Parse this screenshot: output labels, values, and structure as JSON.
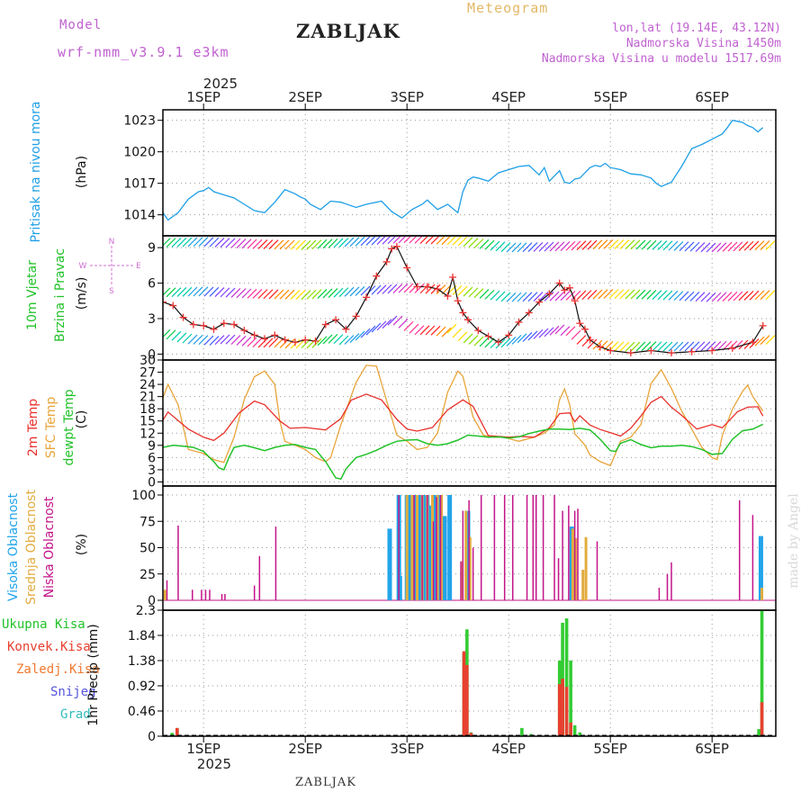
{
  "header": {
    "model_label": "Model",
    "model_name": "wrf-nmm_v3.9.1 e3km",
    "station": "ZABLJAK",
    "title": "Meteogram",
    "lonlat": "lon,lat (19.14E, 43.12N)",
    "altitude": "Nadmorska Visina 1450m",
    "model_altitude": "Nadmorska Visina u modelu 1517.69m"
  },
  "footer": {
    "station": "ZABLJAK",
    "watermark": "made by Angel"
  },
  "colors": {
    "pressure": "#1e9fe6",
    "temp2m": "#e8302a",
    "sfc": "#e8a43a",
    "dewpt": "#22c22a",
    "high": "#21a4ea",
    "mid": "#e2ac3f",
    "low": "#c3148a",
    "rain": "#33cc33",
    "conv": "#e84030",
    "freez": "#f07830",
    "snow": "#5555dd",
    "grad": "#33bbbb",
    "wind": "#d070d0"
  },
  "chart_data": [
    {
      "type": "line",
      "title": "Pritisak na nivou mora",
      "ylabel": "(hPa)",
      "ylim": [
        1012,
        1024
      ],
      "yticks": [
        "1014",
        "1017",
        "1020",
        "1023"
      ],
      "x_day_start": 0.6,
      "top_axis_year": "2025",
      "top_axis_labels": [
        "1SEP",
        "2SEP",
        "3SEP",
        "4SEP",
        "5SEP",
        "6SEP"
      ],
      "series": [
        {
          "name": "Pritisak",
          "x": [
            0.6,
            0.65,
            0.75,
            0.85,
            0.95,
            1.0,
            1.05,
            1.1,
            1.2,
            1.3,
            1.4,
            1.5,
            1.6,
            1.7,
            1.8,
            1.9,
            1.95,
            2.0,
            2.05,
            2.15,
            2.25,
            2.35,
            2.5,
            2.6,
            2.75,
            2.85,
            2.95,
            3.05,
            3.15,
            3.2,
            3.3,
            3.4,
            3.5,
            3.55,
            3.6,
            3.65,
            3.7,
            3.8,
            3.9,
            4.0,
            4.1,
            4.2,
            4.3,
            4.35,
            4.4,
            4.5,
            4.55,
            4.6,
            4.65,
            4.7,
            4.8,
            4.85,
            4.9,
            4.95,
            5.0,
            5.1,
            5.2,
            5.3,
            5.4,
            5.45,
            5.5,
            5.6,
            5.7,
            5.8,
            5.9,
            6.0,
            6.1,
            6.15,
            6.2,
            6.25,
            6.3,
            6.35,
            6.4,
            6.45,
            6.5
          ],
          "values": [
            1014.2,
            1013.5,
            1014.2,
            1015.5,
            1016.2,
            1016.3,
            1016.6,
            1016.2,
            1015.9,
            1015.6,
            1015,
            1014.4,
            1014.2,
            1015.2,
            1016.4,
            1016,
            1015.7,
            1015.5,
            1015,
            1014.5,
            1015.3,
            1015.2,
            1014.7,
            1015,
            1015.3,
            1014.3,
            1013.7,
            1014.5,
            1015,
            1015.4,
            1014.5,
            1015,
            1014.2,
            1016.2,
            1017.3,
            1017.6,
            1017.5,
            1017.2,
            1018,
            1018.3,
            1018.6,
            1018.7,
            1017.8,
            1018.5,
            1017.2,
            1018.2,
            1017.1,
            1017,
            1017.4,
            1017.5,
            1018.5,
            1018.7,
            1018.6,
            1018.9,
            1018.5,
            1018.3,
            1017.9,
            1017.8,
            1017.5,
            1017,
            1016.7,
            1017.1,
            1018.6,
            1020.3,
            1020.7,
            1021.2,
            1021.7,
            1022.3,
            1023,
            1022.9,
            1022.8,
            1022.5,
            1022.3,
            1021.9,
            1022.3
          ]
        }
      ]
    },
    {
      "type": "line",
      "title": "10m Vjetar",
      "subtitle": "Brzina i Pravac",
      "ylabel": "(m/s)",
      "ylim": [
        -0.5,
        10
      ],
      "yticks": [
        "0",
        "3",
        "6",
        "9"
      ],
      "legend_compass": [
        "N",
        "W",
        "E",
        "S"
      ],
      "series": [
        {
          "name": "10m wind speed",
          "x": [
            0.6,
            0.7,
            0.8,
            0.9,
            1.0,
            1.1,
            1.2,
            1.3,
            1.4,
            1.5,
            1.6,
            1.7,
            1.8,
            1.9,
            2.0,
            2.1,
            2.2,
            2.3,
            2.4,
            2.5,
            2.6,
            2.7,
            2.8,
            2.85,
            2.9,
            3.0,
            3.1,
            3.2,
            3.3,
            3.4,
            3.45,
            3.5,
            3.55,
            3.6,
            3.7,
            3.8,
            3.9,
            4.0,
            4.1,
            4.2,
            4.3,
            4.4,
            4.5,
            4.55,
            4.6,
            4.65,
            4.7,
            4.75,
            4.8,
            4.9,
            5.0,
            5.2,
            5.4,
            5.6,
            5.8,
            6.0,
            6.2,
            6.4,
            6.5
          ],
          "values": [
            4.4,
            4.1,
            3.1,
            2.5,
            2.4,
            2.1,
            2.6,
            2.5,
            2.0,
            1.6,
            1.3,
            1.6,
            1.2,
            1.0,
            1.2,
            1.1,
            2.5,
            2.9,
            2.1,
            3.2,
            4.8,
            6.6,
            7.8,
            8.9,
            9.1,
            7.3,
            5.7,
            5.7,
            5.5,
            4.9,
            6.5,
            4.5,
            3.5,
            2.9,
            2.0,
            1.5,
            1.0,
            1.6,
            2.7,
            3.5,
            4.4,
            5.1,
            6.0,
            5.4,
            5.6,
            4.5,
            2.6,
            2.1,
            1.2,
            0.6,
            0.3,
            0.1,
            0.3,
            0.1,
            0.2,
            0.3,
            0.5,
            1.0,
            2.4
          ]
        },
        {
          "name": "wind barb bands",
          "x": [
            0.6,
            1.0,
            1.5,
            2.0,
            2.5,
            3.0,
            3.5,
            4.0,
            4.5,
            5.0,
            5.5,
            6.0,
            6.5
          ],
          "values": [
            9.4,
            9.5,
            9.3,
            9.2,
            9.5,
            9.8,
            9.6,
            9.0,
            9.1,
            9.3,
            9.2,
            9.0,
            9.2
          ]
        }
      ]
    },
    {
      "type": "line",
      "ylabel": "(C)",
      "legend": [
        "2m Temp",
        "SFC Temp",
        "dewpt Temp"
      ],
      "ylim": [
        -1,
        30
      ],
      "yticks": [
        "0",
        "3",
        "6",
        "9",
        "12",
        "15",
        "18",
        "21",
        "24",
        "27",
        "30"
      ],
      "series": [
        {
          "name": "2m Temp",
          "x": [
            0.6,
            0.65,
            0.75,
            0.85,
            1.0,
            1.1,
            1.2,
            1.35,
            1.5,
            1.6,
            1.75,
            1.85,
            2.0,
            2.2,
            2.35,
            2.45,
            2.6,
            2.75,
            2.9,
            3.0,
            3.1,
            3.25,
            3.4,
            3.55,
            3.65,
            3.8,
            3.9,
            4.0,
            4.1,
            4.25,
            4.4,
            4.5,
            4.6,
            4.65,
            4.7,
            4.8,
            4.9,
            5.0,
            5.1,
            5.2,
            5.3,
            5.4,
            5.5,
            5.6,
            5.7,
            5.85,
            6.0,
            6.1,
            6.25,
            6.35,
            6.45,
            6.5
          ],
          "values": [
            15.2,
            17.2,
            15.1,
            13.0,
            11.0,
            10.2,
            12.0,
            17.0,
            19.9,
            19.0,
            15.0,
            13.2,
            13.4,
            12.8,
            15.6,
            20.1,
            21.6,
            20.2,
            15.4,
            13.0,
            12.5,
            13.4,
            17.7,
            20.2,
            18.6,
            11.4,
            11.2,
            11.0,
            11.2,
            11.0,
            13.3,
            16.8,
            17.0,
            14.8,
            16.3,
            14.0,
            12.9,
            12.1,
            11.3,
            13.2,
            16.2,
            19.6,
            21.0,
            18.4,
            16.4,
            13.0,
            14.1,
            13.3,
            17.3,
            18.4,
            18.5,
            16.2
          ]
        },
        {
          "name": "SFC Temp",
          "x": [
            0.6,
            0.65,
            0.75,
            0.85,
            1.0,
            1.1,
            1.2,
            1.3,
            1.4,
            1.5,
            1.6,
            1.7,
            1.75,
            1.8,
            1.9,
            2.0,
            2.1,
            2.2,
            2.25,
            2.35,
            2.5,
            2.6,
            2.7,
            2.8,
            2.9,
            3.0,
            3.1,
            3.2,
            3.3,
            3.4,
            3.5,
            3.55,
            3.65,
            3.75,
            3.85,
            3.95,
            4.1,
            4.25,
            4.35,
            4.45,
            4.5,
            4.55,
            4.6,
            4.65,
            4.7,
            4.75,
            4.8,
            4.9,
            5.0,
            5.05,
            5.1,
            5.2,
            5.3,
            5.4,
            5.5,
            5.6,
            5.7,
            5.8,
            5.9,
            6.0,
            6.05,
            6.1,
            6.2,
            6.3,
            6.35,
            6.4,
            6.5
          ],
          "values": [
            20.7,
            24.0,
            19.0,
            8.0,
            7.0,
            5.5,
            4.8,
            11.0,
            20.3,
            25.9,
            27.3,
            24.0,
            15.0,
            10.0,
            9.0,
            8.0,
            6.0,
            5.0,
            6.0,
            14.1,
            24.5,
            28.7,
            28.5,
            20.0,
            11.5,
            10.0,
            8.0,
            8.5,
            12.0,
            22.1,
            27.3,
            26.0,
            16.0,
            11.5,
            11.0,
            11.0,
            10.0,
            11.0,
            12.0,
            14.0,
            20.2,
            22.9,
            19.0,
            11.8,
            10.5,
            9.0,
            6.6,
            5.0,
            4.0,
            7.0,
            10.0,
            11.0,
            14.1,
            24.2,
            27.6,
            23.0,
            17.5,
            13.0,
            8.5,
            6.0,
            5.5,
            11.4,
            17.9,
            22.3,
            23.8,
            21.0,
            17.4
          ]
        },
        {
          "name": "dewpt Temp",
          "x": [
            0.6,
            0.7,
            0.8,
            0.9,
            1.0,
            1.1,
            1.15,
            1.2,
            1.25,
            1.3,
            1.4,
            1.5,
            1.6,
            1.7,
            1.8,
            1.9,
            2.0,
            2.1,
            2.2,
            2.3,
            2.35,
            2.4,
            2.5,
            2.6,
            2.7,
            2.8,
            2.9,
            3.0,
            3.1,
            3.2,
            3.3,
            3.4,
            3.5,
            3.6,
            3.7,
            3.8,
            3.9,
            4.0,
            4.1,
            4.2,
            4.3,
            4.4,
            4.5,
            4.6,
            4.7,
            4.8,
            4.9,
            5.0,
            5.05,
            5.1,
            5.2,
            5.3,
            5.4,
            5.5,
            5.6,
            5.7,
            5.8,
            5.9,
            6.0,
            6.1,
            6.2,
            6.3,
            6.4,
            6.5
          ],
          "values": [
            8.5,
            9.0,
            8.8,
            8.5,
            7.5,
            5.0,
            3.5,
            3.0,
            6.0,
            8.5,
            9.0,
            8.4,
            7.7,
            8.5,
            9.0,
            9.2,
            8.5,
            8.0,
            5.0,
            1.0,
            0.7,
            3.2,
            6.0,
            6.8,
            7.8,
            9.0,
            10.0,
            10.3,
            10.4,
            9.4,
            9.0,
            9.4,
            10.3,
            11.5,
            11.3,
            11.0,
            11.1,
            10.8,
            11.1,
            11.9,
            12.5,
            13.0,
            13.0,
            12.9,
            13.2,
            12.8,
            10.5,
            7.7,
            7.5,
            9.5,
            10.4,
            9.2,
            8.4,
            8.8,
            8.8,
            9.0,
            8.7,
            8.0,
            6.8,
            7.0,
            10.5,
            12.6,
            13.0,
            14.2
          ]
        }
      ]
    },
    {
      "type": "bar",
      "ylabel": "(%)",
      "legend": [
        "Visoka Oblacnost",
        "Srednja Oblacnost",
        "Niska Oblacnost"
      ],
      "ylim": [
        0,
        100
      ],
      "yticks": [
        "0",
        "25",
        "50",
        "75",
        "100"
      ],
      "series": [
        {
          "name": "Visoka Oblacnost",
          "x": [
            2.83,
            2.92,
            2.93,
            3.0,
            3.04,
            3.08,
            3.12,
            3.16,
            3.2,
            3.24,
            3.28,
            3.32,
            3.37,
            3.42,
            3.6,
            4.62,
            6.48
          ],
          "values": [
            68,
            100,
            23,
            100,
            100,
            100,
            100,
            100,
            100,
            90,
            100,
            100,
            80,
            100,
            85,
            70,
            61
          ]
        },
        {
          "name": "Srednja Oblacnost",
          "x": [
            0.62,
            3.0,
            3.05,
            3.1,
            3.15,
            3.2,
            3.25,
            3.3,
            3.34,
            3.54,
            3.58,
            3.62,
            4.63,
            4.66,
            4.73,
            4.76,
            6.49
          ],
          "values": [
            10,
            100,
            100,
            100,
            100,
            100,
            100,
            100,
            100,
            37,
            85,
            60,
            68,
            59,
            29,
            60,
            12
          ]
        },
        {
          "name": "Niska Oblacnost",
          "x": [
            0.64,
            0.75,
            0.89,
            0.98,
            1.02,
            1.06,
            1.18,
            1.21,
            1.5,
            1.55,
            1.71,
            2.92,
            3.07,
            3.15,
            3.2,
            3.26,
            3.29,
            3.33,
            3.53,
            3.55,
            3.61,
            3.65,
            3.73,
            3.86,
            3.96,
            4.04,
            4.18,
            4.24,
            4.27,
            4.34,
            4.45,
            4.49,
            4.53,
            4.59,
            4.65,
            4.68,
            4.87,
            5.48,
            5.56,
            5.6,
            6.27,
            6.4
          ],
          "values": [
            19,
            71,
            10,
            10,
            10,
            10,
            6,
            6,
            14,
            42,
            70,
            100,
            100,
            100,
            100,
            75,
            98,
            100,
            37,
            85,
            95,
            50,
            100,
            100,
            100,
            100,
            100,
            100,
            100,
            100,
            100,
            40,
            85,
            90,
            85,
            87,
            56,
            12,
            25,
            36,
            95,
            81
          ]
        }
      ]
    },
    {
      "type": "bar",
      "ylabel": "1hr Precip (mm)",
      "legend": [
        "Ukupna Kisa",
        "Konvek.Kisa",
        "Zaledj.Kisa",
        "Snijeg",
        "Grad"
      ],
      "ylim": [
        0,
        2.3
      ],
      "yticks": [
        "0",
        "0.46",
        "0.92",
        "1.38",
        "1.84",
        "2.3"
      ],
      "bottom_axis_labels": [
        "1SEP",
        "2SEP",
        "3SEP",
        "4SEP",
        "5SEP",
        "6SEP"
      ],
      "bottom_axis_year": "2025",
      "series": [
        {
          "name": "Ukupna Kisa",
          "x": [
            0.69,
            0.74,
            3.56,
            3.59,
            3.63,
            4.13,
            4.22,
            4.5,
            4.53,
            4.57,
            4.61,
            4.65,
            4.7,
            6.46,
            6.49
          ],
          "values": [
            0.06,
            0.15,
            1.5,
            1.95,
            0.07,
            0.15,
            0.04,
            1.38,
            2.07,
            2.15,
            1.38,
            0.2,
            0.07,
            0.13,
            2.29
          ]
        },
        {
          "name": "Konvek.Kisa",
          "x": [
            0.74,
            3.56,
            3.59,
            3.63,
            4.5,
            4.53,
            4.57,
            4.61,
            6.49
          ],
          "values": [
            0.15,
            1.55,
            1.3,
            0.06,
            0.95,
            1.05,
            0.9,
            0.25,
            0.62
          ]
        }
      ]
    }
  ]
}
